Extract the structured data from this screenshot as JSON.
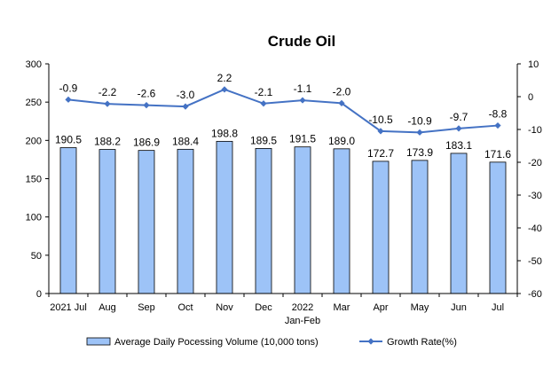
{
  "chart_data": {
    "type": "bar+line",
    "title": "Crude Oil",
    "categories": [
      [
        "2021 Jul"
      ],
      [
        "Aug"
      ],
      [
        "Sep"
      ],
      [
        "Oct"
      ],
      [
        "Nov"
      ],
      [
        "Dec"
      ],
      [
        "2022",
        "Jan-Feb"
      ],
      [
        "Mar"
      ],
      [
        "Apr"
      ],
      [
        "May"
      ],
      [
        "Jun"
      ],
      [
        "Jul"
      ]
    ],
    "series": [
      {
        "name": "Average Daily Pocessing Volume (10,000 tons)",
        "type": "bar",
        "axis": "left",
        "values": [
          190.5,
          188.2,
          186.9,
          188.4,
          198.8,
          189.5,
          191.5,
          189.0,
          172.7,
          173.9,
          183.1,
          171.6
        ],
        "labels": [
          "190.5",
          "188.2",
          "186.9",
          "188.4",
          "198.8",
          "189.5",
          "191.5",
          "189.0",
          "172.7",
          "173.9",
          "183.1",
          "171.6"
        ],
        "color": "#9dc3f7"
      },
      {
        "name": "Growth Rate(%)",
        "type": "line",
        "axis": "right",
        "values": [
          -0.9,
          -2.2,
          -2.6,
          -3.0,
          2.2,
          -2.1,
          -1.1,
          -2.0,
          -10.5,
          -10.9,
          -9.7,
          -8.8
        ],
        "labels": [
          "-0.9",
          "-2.2",
          "-2.6",
          "-3.0",
          "2.2",
          "-2.1",
          "-1.1",
          "-2.0",
          "-10.5",
          "-10.9",
          "-9.7",
          "-8.8"
        ],
        "color": "#4472c4"
      }
    ],
    "y_left": {
      "min": 0,
      "max": 300,
      "step": 50,
      "ticks": [
        "0",
        "50",
        "100",
        "150",
        "200",
        "250",
        "300"
      ]
    },
    "y_right": {
      "min": -60,
      "max": 10,
      "step": 10,
      "ticks": [
        "-60",
        "-50",
        "-40",
        "-30",
        "-20",
        "-10",
        "0",
        "10"
      ]
    },
    "grid": false,
    "legend_position": "bottom"
  }
}
